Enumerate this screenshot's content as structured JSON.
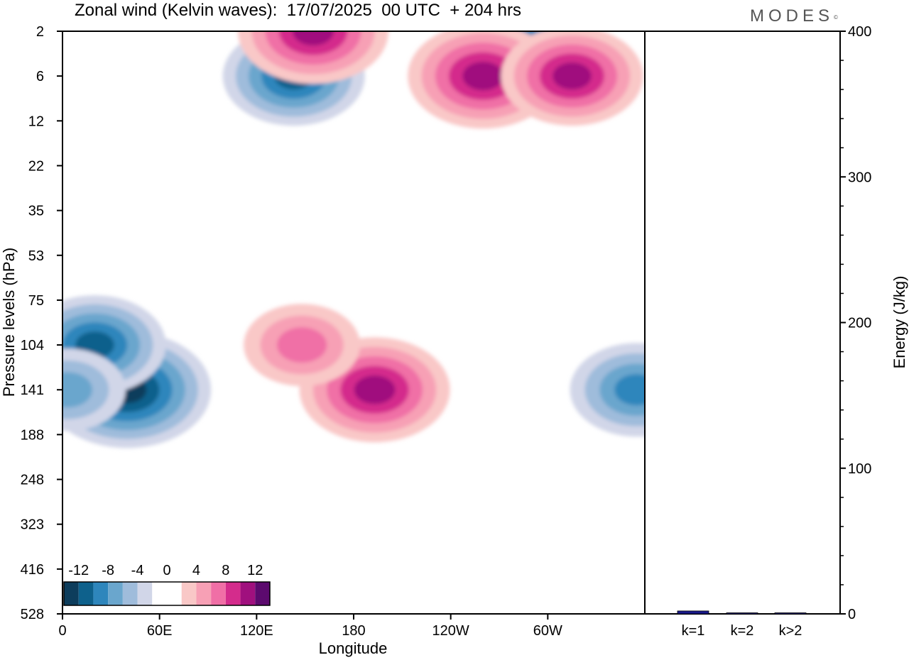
{
  "title": "Zonal wind (Kelvin waves):  17/07/2025  00 UTC  + 204 hrs",
  "logo": "MODES",
  "logo_mark": "©",
  "colors": {
    "neg": [
      "#0d3d5c",
      "#0e618c",
      "#2e86bc",
      "#6aa6cd",
      "#9fbcdb",
      "#d1d6e8"
    ],
    "pos": [
      "#f9c8c7",
      "#f7a0b5",
      "#f06fa6",
      "#d42c8c",
      "#a0107e",
      "#5c0a6e"
    ]
  },
  "chart_data": [
    {
      "type": "heatmap",
      "title": "Zonal wind (Kelvin waves):  17/07/2025  00 UTC  + 204 hrs",
      "xlabel": "Longitude",
      "ylabel": "Pressure levels (hPa)",
      "x_ticks": [
        "0",
        "60E",
        "120E",
        "180",
        "120W",
        "60W"
      ],
      "y_ticks": [
        "2",
        "6",
        "12",
        "22",
        "35",
        "53",
        "75",
        "104",
        "141",
        "188",
        "248",
        "323",
        "416",
        "528"
      ],
      "colorbar": {
        "ticks": [
          "-12",
          "-8",
          "-4",
          "0",
          "4",
          "8",
          "12"
        ],
        "levels": [
          -14,
          -12,
          -10,
          -8,
          -6,
          -4,
          -2,
          2,
          4,
          6,
          8,
          10,
          12,
          14
        ]
      },
      "features": [
        {
          "lon": 40,
          "level": 141,
          "value": -13
        },
        {
          "lon": 20,
          "level": 104,
          "value": -10
        },
        {
          "lon": 3,
          "level": 141,
          "value": -7
        },
        {
          "lon": 143,
          "level": 6,
          "value": -10
        },
        {
          "lon": 285,
          "level": 2,
          "value": -9
        },
        {
          "lon": 355,
          "level": 141,
          "value": -9
        },
        {
          "lon": 155,
          "level": 2,
          "value": 11
        },
        {
          "lon": 260,
          "level": 6,
          "value": 11
        },
        {
          "lon": 315,
          "level": 6,
          "value": 10
        },
        {
          "lon": 193,
          "level": 141,
          "value": 11
        },
        {
          "lon": 148,
          "level": 104,
          "value": 7
        }
      ]
    },
    {
      "type": "bar",
      "categories": [
        "k=1",
        "k=2",
        "k>2"
      ],
      "values": [
        2,
        0.4,
        0.6
      ],
      "ylabel": "Energy (J/kg)",
      "ylim": [
        0,
        400
      ],
      "y_ticks": [
        "0",
        "100",
        "200",
        "300",
        "400"
      ],
      "bar_color": "#1a1a8c"
    }
  ]
}
